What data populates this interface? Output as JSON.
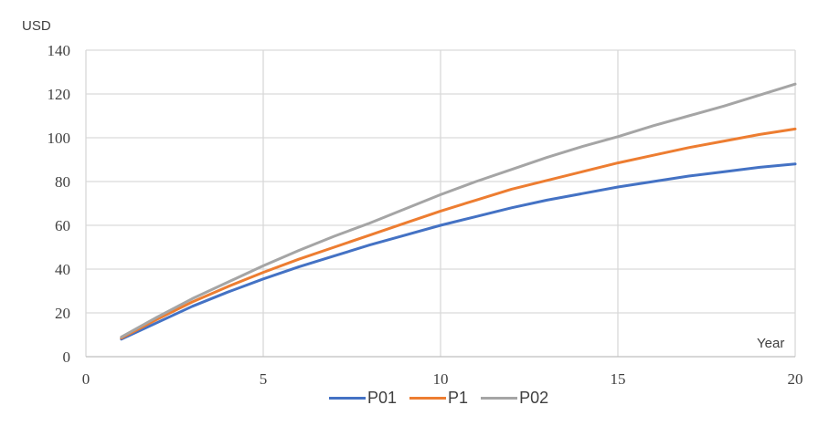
{
  "chart_data": {
    "type": "line",
    "ylabel": "USD",
    "xlabel": "Year",
    "xlim": [
      0,
      20
    ],
    "ylim": [
      0,
      140
    ],
    "x_ticks": [
      "0",
      "5",
      "10",
      "15",
      "20"
    ],
    "y_ticks": [
      "0",
      "20",
      "40",
      "60",
      "80",
      "100",
      "120",
      "140"
    ],
    "grid": true,
    "legend_position": "bottom",
    "x": [
      1,
      2,
      3,
      4,
      5,
      6,
      7,
      8,
      9,
      10,
      11,
      12,
      13,
      14,
      15,
      16,
      17,
      18,
      19,
      20
    ],
    "series": [
      {
        "name": "P01",
        "color": "#4472c4",
        "values": [
          8,
          15.5,
          23,
          29.5,
          35.5,
          41,
          46,
          51,
          55.5,
          60,
          64,
          68,
          71.5,
          74.5,
          77.5,
          80,
          82.5,
          84.5,
          86.5,
          88
        ]
      },
      {
        "name": "P1",
        "color": "#ed7d31",
        "values": [
          8.5,
          17,
          25,
          32,
          38.5,
          44.5,
          50,
          55.5,
          61,
          66.5,
          71.5,
          76.5,
          80.5,
          84.5,
          88.5,
          92,
          95.5,
          98.5,
          101.5,
          104
        ]
      },
      {
        "name": "P02",
        "color": "#a5a5a5",
        "values": [
          9,
          18,
          26.5,
          34,
          41.5,
          48.5,
          55,
          61,
          67.5,
          74,
          80,
          85.5,
          91,
          96,
          100.5,
          105.5,
          110,
          114.5,
          119.5,
          124.5
        ]
      }
    ]
  }
}
